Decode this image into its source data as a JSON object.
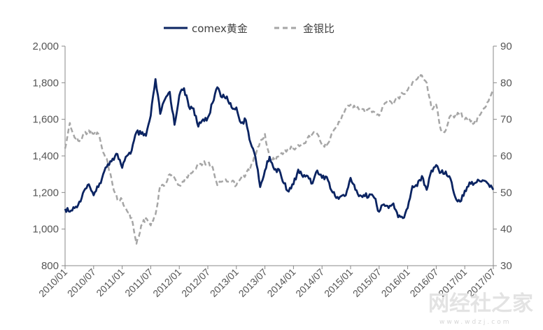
{
  "watermark": {
    "text": "网经社之家",
    "subtext": "www.wdzj.com"
  },
  "chart_data": {
    "type": "line",
    "title": "",
    "xlabel": "",
    "ylabel": "",
    "y2label": "",
    "ylim": [
      800,
      2000
    ],
    "y2lim": [
      30,
      90
    ],
    "yticks": [
      800,
      1000,
      1200,
      1400,
      1600,
      1800,
      2000
    ],
    "yticks_labels": [
      "800",
      "1,000",
      "1,200",
      "1,400",
      "1,600",
      "1,800",
      "2,000"
    ],
    "y2ticks": [
      30,
      40,
      50,
      60,
      70,
      80,
      90
    ],
    "y2ticks_labels": [
      "30",
      "40",
      "50",
      "60",
      "70",
      "80",
      "90"
    ],
    "xlim": [
      "2010/01",
      "2017/07"
    ],
    "xticks": [
      "2010/01",
      "2010/07",
      "2011/01",
      "2011/07",
      "2012/01",
      "2012/07",
      "2013/01",
      "2013/07",
      "2014/01",
      "2014/07",
      "2015/01",
      "2015/07",
      "2016/01",
      "2016/07",
      "2017/01",
      "2017/07"
    ],
    "grid": false,
    "legend_position": "top-center",
    "series": [
      {
        "name": "comex黄金",
        "axis": "left",
        "color": "#0b2462",
        "style": "solid",
        "points": [
          [
            "2010/01",
            1110
          ],
          [
            "2010/02",
            1095
          ],
          [
            "2010/03",
            1115
          ],
          [
            "2010/04",
            1150
          ],
          [
            "2010/05",
            1210
          ],
          [
            "2010/06",
            1245
          ],
          [
            "2010/07",
            1185
          ],
          [
            "2010/08",
            1230
          ],
          [
            "2010/09",
            1300
          ],
          [
            "2010/10",
            1355
          ],
          [
            "2010/11",
            1385
          ],
          [
            "2010/12",
            1410
          ],
          [
            "2011/01",
            1335
          ],
          [
            "2011/02",
            1400
          ],
          [
            "2011/03",
            1430
          ],
          [
            "2011/04",
            1530
          ],
          [
            "2011/05",
            1520
          ],
          [
            "2011/06",
            1510
          ],
          [
            "2011/07",
            1620
          ],
          [
            "2011/08",
            1820
          ],
          [
            "2011/09",
            1630
          ],
          [
            "2011/10",
            1710
          ],
          [
            "2011/11",
            1750
          ],
          [
            "2011/12",
            1570
          ],
          [
            "2012/01",
            1730
          ],
          [
            "2012/02",
            1770
          ],
          [
            "2012/03",
            1670
          ],
          [
            "2012/04",
            1660
          ],
          [
            "2012/05",
            1560
          ],
          [
            "2012/06",
            1600
          ],
          [
            "2012/07",
            1610
          ],
          [
            "2012/08",
            1690
          ],
          [
            "2012/09",
            1775
          ],
          [
            "2012/10",
            1720
          ],
          [
            "2012/11",
            1725
          ],
          [
            "2012/12",
            1665
          ],
          [
            "2013/01",
            1665
          ],
          [
            "2013/02",
            1580
          ],
          [
            "2013/03",
            1595
          ],
          [
            "2013/04",
            1470
          ],
          [
            "2013/05",
            1395
          ],
          [
            "2013/06",
            1230
          ],
          [
            "2013/07",
            1320
          ],
          [
            "2013/08",
            1395
          ],
          [
            "2013/09",
            1325
          ],
          [
            "2013/10",
            1325
          ],
          [
            "2013/11",
            1250
          ],
          [
            "2013/12",
            1205
          ],
          [
            "2014/01",
            1245
          ],
          [
            "2014/02",
            1325
          ],
          [
            "2014/03",
            1285
          ],
          [
            "2014/04",
            1290
          ],
          [
            "2014/05",
            1250
          ],
          [
            "2014/06",
            1320
          ],
          [
            "2014/07",
            1280
          ],
          [
            "2014/08",
            1285
          ],
          [
            "2014/09",
            1210
          ],
          [
            "2014/10",
            1170
          ],
          [
            "2014/11",
            1180
          ],
          [
            "2014/12",
            1185
          ],
          [
            "2015/01",
            1280
          ],
          [
            "2015/02",
            1215
          ],
          [
            "2015/03",
            1185
          ],
          [
            "2015/04",
            1180
          ],
          [
            "2015/05",
            1190
          ],
          [
            "2015/06",
            1170
          ],
          [
            "2015/07",
            1095
          ],
          [
            "2015/08",
            1135
          ],
          [
            "2015/09",
            1115
          ],
          [
            "2015/10",
            1140
          ],
          [
            "2015/11",
            1065
          ],
          [
            "2015/12",
            1060
          ],
          [
            "2016/01",
            1115
          ],
          [
            "2016/02",
            1235
          ],
          [
            "2016/03",
            1235
          ],
          [
            "2016/04",
            1290
          ],
          [
            "2016/05",
            1215
          ],
          [
            "2016/06",
            1320
          ],
          [
            "2016/07",
            1350
          ],
          [
            "2016/08",
            1310
          ],
          [
            "2016/09",
            1315
          ],
          [
            "2016/10",
            1275
          ],
          [
            "2016/11",
            1175
          ],
          [
            "2016/12",
            1150
          ],
          [
            "2017/01",
            1210
          ],
          [
            "2017/02",
            1255
          ],
          [
            "2017/03",
            1250
          ],
          [
            "2017/04",
            1265
          ],
          [
            "2017/05",
            1265
          ],
          [
            "2017/06",
            1245
          ],
          [
            "2017/07",
            1215
          ]
        ]
      },
      {
        "name": "金银比",
        "axis": "right",
        "color": "#a6a6a6",
        "style": "dashed",
        "points": [
          [
            "2010/01",
            62
          ],
          [
            "2010/02",
            69
          ],
          [
            "2010/03",
            65
          ],
          [
            "2010/04",
            64
          ],
          [
            "2010/05",
            66
          ],
          [
            "2010/06",
            67
          ],
          [
            "2010/07",
            66
          ],
          [
            "2010/08",
            66
          ],
          [
            "2010/09",
            61
          ],
          [
            "2010/10",
            58
          ],
          [
            "2010/11",
            52
          ],
          [
            "2010/12",
            48
          ],
          [
            "2011/01",
            48
          ],
          [
            "2011/02",
            45
          ],
          [
            "2011/03",
            43
          ],
          [
            "2011/04",
            36
          ],
          [
            "2011/05",
            41
          ],
          [
            "2011/06",
            43
          ],
          [
            "2011/07",
            41
          ],
          [
            "2011/08",
            44
          ],
          [
            "2011/09",
            52
          ],
          [
            "2011/10",
            52
          ],
          [
            "2011/11",
            55
          ],
          [
            "2011/12",
            54
          ],
          [
            "2012/01",
            52
          ],
          [
            "2012/02",
            53
          ],
          [
            "2012/03",
            55
          ],
          [
            "2012/04",
            56
          ],
          [
            "2012/05",
            58
          ],
          [
            "2012/06",
            58
          ],
          [
            "2012/07",
            58
          ],
          [
            "2012/08",
            57
          ],
          [
            "2012/09",
            52
          ],
          [
            "2012/10",
            53
          ],
          [
            "2012/11",
            53
          ],
          [
            "2012/12",
            53
          ],
          [
            "2013/01",
            52
          ],
          [
            "2013/02",
            54
          ],
          [
            "2013/03",
            55
          ],
          [
            "2013/04",
            57
          ],
          [
            "2013/05",
            60
          ],
          [
            "2013/06",
            64
          ],
          [
            "2013/07",
            66
          ],
          [
            "2013/08",
            59
          ],
          [
            "2013/09",
            59
          ],
          [
            "2013/10",
            60
          ],
          [
            "2013/11",
            61
          ],
          [
            "2013/12",
            62
          ],
          [
            "2014/01",
            62
          ],
          [
            "2014/02",
            63
          ],
          [
            "2014/03",
            63
          ],
          [
            "2014/04",
            65
          ],
          [
            "2014/05",
            66
          ],
          [
            "2014/06",
            66
          ],
          [
            "2014/07",
            63
          ],
          [
            "2014/08",
            63
          ],
          [
            "2014/09",
            66
          ],
          [
            "2014/10",
            68
          ],
          [
            "2014/11",
            70
          ],
          [
            "2014/12",
            73
          ],
          [
            "2015/01",
            74
          ],
          [
            "2015/02",
            73
          ],
          [
            "2015/03",
            73
          ],
          [
            "2015/04",
            72
          ],
          [
            "2015/05",
            73
          ],
          [
            "2015/06",
            72
          ],
          [
            "2015/07",
            71
          ],
          [
            "2015/08",
            74
          ],
          [
            "2015/09",
            75
          ],
          [
            "2015/10",
            74
          ],
          [
            "2015/11",
            76
          ],
          [
            "2015/12",
            77
          ],
          [
            "2016/01",
            78
          ],
          [
            "2016/02",
            80
          ],
          [
            "2016/03",
            81
          ],
          [
            "2016/04",
            82
          ],
          [
            "2016/05",
            80
          ],
          [
            "2016/06",
            73
          ],
          [
            "2016/07",
            74
          ],
          [
            "2016/08",
            67
          ],
          [
            "2016/09",
            67
          ],
          [
            "2016/10",
            71
          ],
          [
            "2016/11",
            71
          ],
          [
            "2016/12",
            72
          ],
          [
            "2017/01",
            70
          ],
          [
            "2017/02",
            70
          ],
          [
            "2017/03",
            69
          ],
          [
            "2017/04",
            71
          ],
          [
            "2017/05",
            73
          ],
          [
            "2017/06",
            75
          ],
          [
            "2017/07",
            78
          ]
        ]
      }
    ]
  }
}
